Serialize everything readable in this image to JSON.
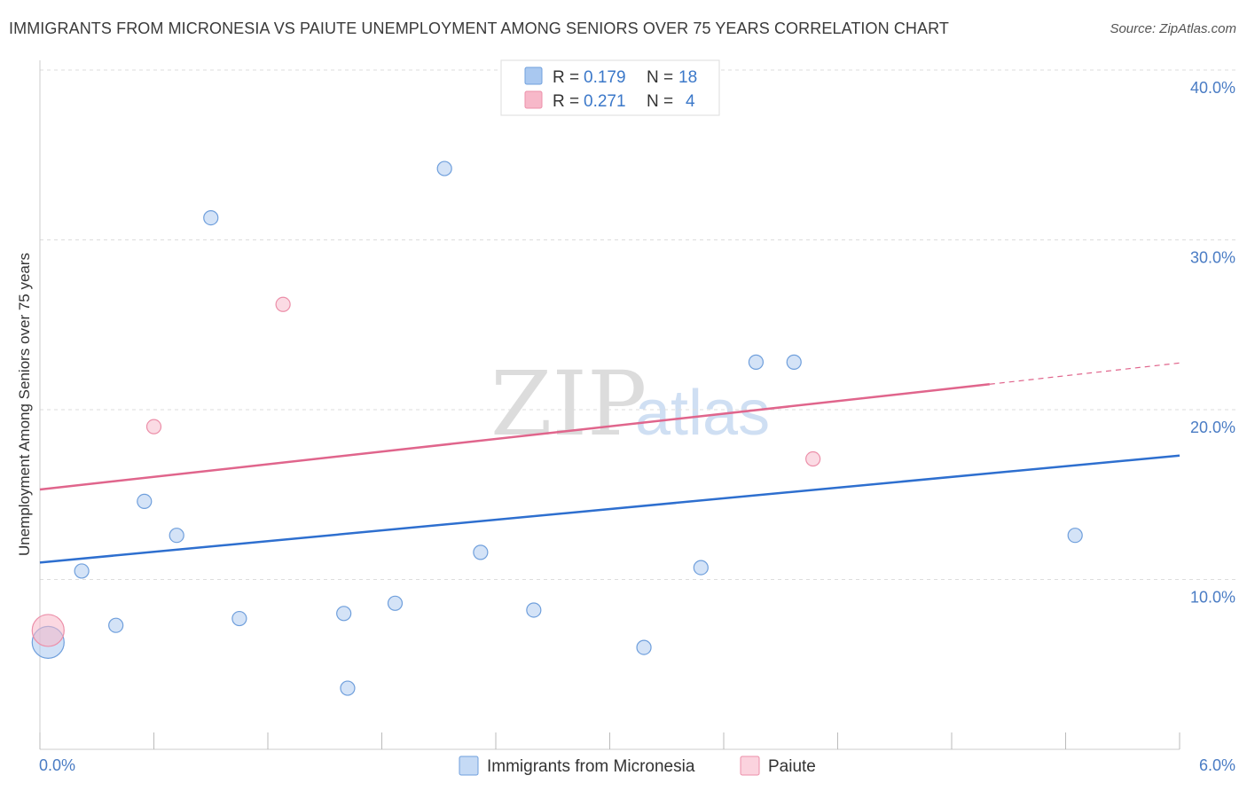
{
  "title": "IMMIGRANTS FROM MICRONESIA VS PAIUTE UNEMPLOYMENT AMONG SENIORS OVER 75 YEARS CORRELATION CHART",
  "source": "Source: ZipAtlas.com",
  "watermark": {
    "zip": "ZIP",
    "atlas": "atlas"
  },
  "legend": {
    "rows": [
      {
        "r_label": "R =",
        "r_value": "0.179",
        "n_label": "N =",
        "n_value": "18",
        "color": "#a9c8f0"
      },
      {
        "r_label": "R =",
        "r_value": "0.271",
        "n_label": "N =",
        "n_value": "4",
        "color": "#f7b8c9"
      }
    ]
  },
  "chart_data": {
    "type": "scatter",
    "title": "IMMIGRANTS FROM MICRONESIA VS PAIUTE UNEMPLOYMENT AMONG SENIORS OVER 75 YEARS CORRELATION CHART",
    "xlabel": "",
    "ylabel": "Unemployment Among Seniors over 75 years",
    "xlim": [
      0,
      6
    ],
    "ylim": [
      0,
      40
    ],
    "x_tick_labels": [
      "0.0%",
      "6.0%"
    ],
    "y_tick_labels": [
      "10.0%",
      "20.0%",
      "30.0%",
      "40.0%"
    ],
    "y_ticks": [
      10,
      20,
      30,
      40
    ],
    "grid": true,
    "legend_position": "top-center",
    "series": [
      {
        "name": "Immigrants from Micronesia",
        "color": "#a9c8f0",
        "stroke": "#6f9fdc",
        "trend_color": "#2e6fcf",
        "trend": {
          "x": [
            0,
            6
          ],
          "y": [
            11.0,
            17.3
          ]
        },
        "points": [
          {
            "x": 0.02,
            "y": 6.3,
            "big": true
          },
          {
            "x": 0.22,
            "y": 10.5
          },
          {
            "x": 0.4,
            "y": 7.3
          },
          {
            "x": 0.55,
            "y": 14.6
          },
          {
            "x": 0.72,
            "y": 12.6
          },
          {
            "x": 0.9,
            "y": 31.3
          },
          {
            "x": 1.05,
            "y": 7.7
          },
          {
            "x": 1.6,
            "y": 8.0
          },
          {
            "x": 1.62,
            "y": 3.6
          },
          {
            "x": 1.87,
            "y": 8.6
          },
          {
            "x": 2.13,
            "y": 34.2
          },
          {
            "x": 2.32,
            "y": 11.6
          },
          {
            "x": 2.6,
            "y": 8.2
          },
          {
            "x": 3.18,
            "y": 6.0
          },
          {
            "x": 3.48,
            "y": 10.7
          },
          {
            "x": 3.77,
            "y": 22.8
          },
          {
            "x": 3.97,
            "y": 22.8
          },
          {
            "x": 5.45,
            "y": 12.6
          }
        ]
      },
      {
        "name": "Paiute",
        "color": "#f7b8c9",
        "stroke": "#ec8fa9",
        "trend_color": "#e0658c",
        "trend": {
          "x": [
            0,
            5.0
          ],
          "y": [
            15.3,
            21.5
          ]
        },
        "trend_dashed": {
          "x": [
            5.0,
            6.0
          ],
          "y": [
            21.5,
            22.75
          ]
        },
        "points": [
          {
            "x": 0.02,
            "y": 7.0,
            "big": true
          },
          {
            "x": 0.6,
            "y": 19.0
          },
          {
            "x": 1.28,
            "y": 26.2
          },
          {
            "x": 4.07,
            "y": 17.1
          }
        ]
      }
    ]
  }
}
